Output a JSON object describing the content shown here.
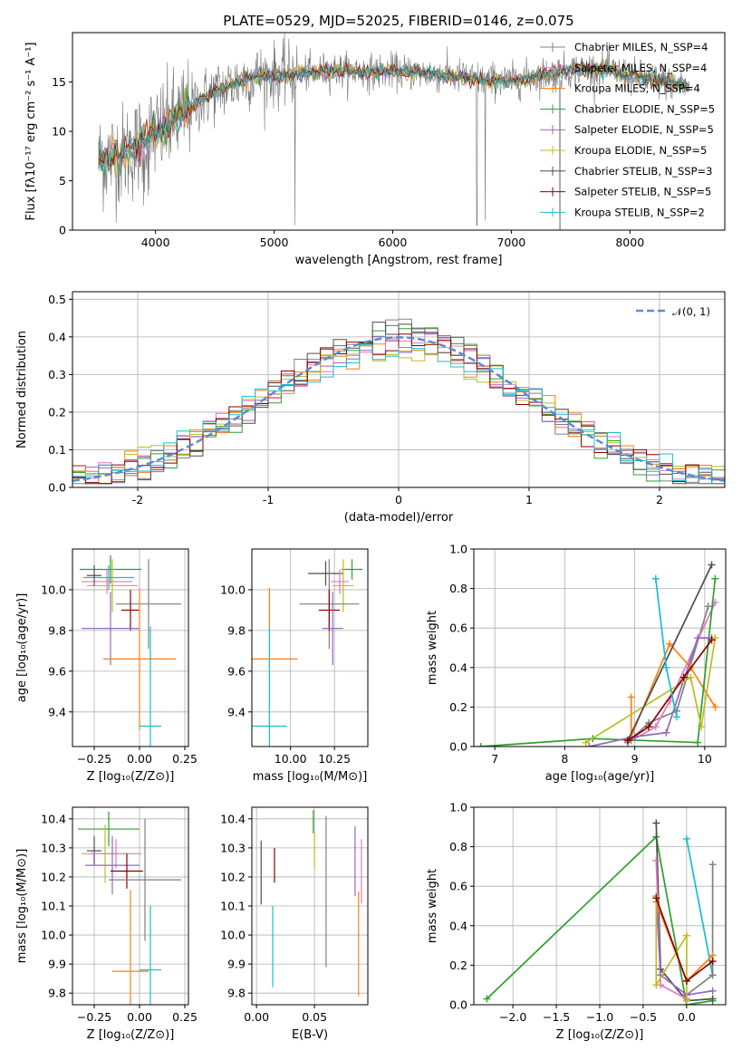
{
  "figure": {
    "title": "PLATE=0529, MJD=52025, FIBERID=0146, z=0.075"
  },
  "colors": {
    "series": [
      "#808080",
      "#e377c2",
      "#ff7f0e",
      "#2ca02c",
      "#9467bd",
      "#bcbd22",
      "#4d4d4d",
      "#8b0000",
      "#17becf"
    ],
    "obs": "#777777",
    "gauss": "#5b8bd6"
  },
  "chart_data": [
    {
      "id": "spectrum",
      "type": "line",
      "xlabel": "wavelength [Angstrom, rest frame]",
      "ylabel": "Flux [fλ10⁻¹⁷ erg cm⁻² s⁻¹ A⁻¹]",
      "xlim": [
        3300,
        8800
      ],
      "ylim": [
        0,
        20
      ],
      "xticks": [
        4000,
        5000,
        6000,
        7000,
        8000
      ],
      "yticks": [
        0,
        5,
        10,
        15
      ],
      "grid": false,
      "legend_position": "right",
      "legend": [
        "Chabrier MILES, N_SSP=4",
        "Salpeter MILES, N_SSP=4",
        "Kroupa MILES, N_SSP=4",
        "Chabrier ELODIE, N_SSP=5",
        "Salpeter ELODIE, N_SSP=5",
        "Kroupa ELODIE, N_SSP=5",
        "Chabrier STELIB, N_SSP=3",
        "Salpeter STELIB, N_SSP=5",
        "Kroupa STELIB, N_SSP=2"
      ],
      "continuum": [
        [
          3520,
          7.0
        ],
        [
          3650,
          7.5
        ],
        [
          3800,
          8.0
        ],
        [
          3950,
          9.5
        ],
        [
          4100,
          10.5
        ],
        [
          4300,
          12.5
        ],
        [
          4500,
          14.0
        ],
        [
          4800,
          15.5
        ],
        [
          5000,
          15.7
        ],
        [
          5200,
          15.8
        ],
        [
          5500,
          16.2
        ],
        [
          5800,
          16.0
        ],
        [
          6000,
          16.1
        ],
        [
          6300,
          15.9
        ],
        [
          6500,
          15.6
        ],
        [
          6800,
          15.2
        ],
        [
          7000,
          15.1
        ],
        [
          7300,
          15.8
        ],
        [
          7500,
          16.2
        ],
        [
          7800,
          16.3
        ],
        [
          8000,
          15.6
        ],
        [
          8300,
          15.0
        ],
        [
          8500,
          14.6
        ]
      ],
      "dips": [
        [
          3900,
          2.5
        ],
        [
          3935,
          3.5
        ],
        [
          5175,
          0.5
        ],
        [
          6710,
          0.5
        ],
        [
          6780,
          1.0
        ],
        [
          7410,
          0.0
        ]
      ]
    },
    {
      "id": "residuals",
      "type": "area",
      "xlabel": "(data-model)/error",
      "ylabel": "Normed distribution",
      "xlim": [
        -2.5,
        2.5
      ],
      "ylim": [
        0,
        0.52
      ],
      "xticks": [
        -2,
        -1,
        0,
        1,
        2
      ],
      "yticks": [
        0.0,
        0.1,
        0.2,
        0.3,
        0.4,
        0.5
      ],
      "grid": true,
      "legend_position": "top-right",
      "legend": [
        "𝒩(0, 1)"
      ],
      "bin_width": 0.1,
      "bin_start": -2.5
    },
    {
      "id": "age-vs-Z",
      "type": "scatter",
      "xlabel": "Z [log₁₀(Z/Z⊙)]",
      "ylabel": "age  [log₁₀(age/yr)]",
      "xlim": [
        -0.37,
        0.27
      ],
      "ylim": [
        9.23,
        10.2
      ],
      "xticks": [
        -0.25,
        0.0,
        0.25
      ],
      "xticklabels": [
        "−0.25",
        "0.00",
        "0.25"
      ],
      "yticks": [
        9.4,
        9.6,
        9.8,
        10.0
      ],
      "grid": true,
      "points": [
        {
          "s": 3,
          "x": -0.16,
          "xerr": 0.17,
          "y": 10.1,
          "yerr": 0.07
        },
        {
          "s": 8,
          "x": -0.17,
          "xerr": 0.14,
          "y": 10.06,
          "yerr": 0.06
        },
        {
          "s": 1,
          "x": -0.18,
          "xerr": 0.14,
          "y": 10.04,
          "yerr": 0.06
        },
        {
          "s": 5,
          "x": -0.15,
          "xerr": 0.14,
          "y": 10.02,
          "yerr": 0.13
        },
        {
          "s": 6,
          "x": -0.25,
          "xerr": 0.04,
          "y": 10.07,
          "yerr": 0.05
        },
        {
          "s": 0,
          "x": 0.05,
          "xerr": 0.18,
          "y": 9.93,
          "yerr": 0.22
        },
        {
          "s": 7,
          "x": -0.05,
          "xerr": 0.05,
          "y": 9.9,
          "yerr": 0.1
        },
        {
          "s": 4,
          "x": -0.16,
          "xerr": 0.16,
          "y": 9.81,
          "yerr": 0.18
        },
        {
          "s": 2,
          "x": 0.0,
          "xerr": 0.2,
          "y": 9.66,
          "yerr": 0.35
        },
        {
          "s": 8,
          "x": 0.06,
          "xerr": 0.06,
          "y": 9.33,
          "yerr": 0.49
        }
      ]
    },
    {
      "id": "age-vs-mass",
      "type": "scatter",
      "xlabel": "mass [log₁₀(M/M⊙)]",
      "ylabel": "",
      "xlim": [
        9.78,
        10.44
      ],
      "ylim": [
        9.23,
        10.2
      ],
      "xticks": [
        10.0,
        10.25
      ],
      "xticklabels": [
        "10.00",
        "10.25"
      ],
      "yticks": [
        9.4,
        9.6,
        9.8,
        10.0
      ],
      "grid": true,
      "points": [
        {
          "s": 3,
          "x": 10.35,
          "xerr": 0.06,
          "y": 10.1,
          "yerr": 0.05
        },
        {
          "s": 6,
          "x": 10.2,
          "xerr": 0.1,
          "y": 10.08,
          "yerr": 0.06
        },
        {
          "s": 1,
          "x": 10.28,
          "xerr": 0.05,
          "y": 10.04,
          "yerr": 0.06
        },
        {
          "s": 5,
          "x": 10.3,
          "xerr": 0.06,
          "y": 10.02,
          "yerr": 0.13
        },
        {
          "s": 0,
          "x": 10.22,
          "xerr": 0.17,
          "y": 9.93,
          "yerr": 0.22
        },
        {
          "s": 7,
          "x": 10.22,
          "xerr": 0.06,
          "y": 9.9,
          "yerr": 0.1
        },
        {
          "s": 4,
          "x": 10.24,
          "xerr": 0.06,
          "y": 9.81,
          "yerr": 0.18
        },
        {
          "s": 2,
          "x": 9.88,
          "xerr": 0.16,
          "y": 9.66,
          "yerr": 0.35
        },
        {
          "s": 8,
          "x": 9.88,
          "xerr": 0.1,
          "y": 9.33,
          "yerr": 0.49
        }
      ]
    },
    {
      "id": "massweight-vs-age",
      "type": "line",
      "xlabel": "age  [log₁₀(age/yr)]",
      "ylabel": "mass weight",
      "xlim": [
        6.7,
        10.3
      ],
      "ylim": [
        0,
        1
      ],
      "xticks": [
        7,
        8,
        9,
        10
      ],
      "yticks": [
        0.0,
        0.2,
        0.4,
        0.6,
        0.8,
        1.0
      ],
      "grid": true,
      "series": [
        {
          "s": 0,
          "points": [
            [
              8.9,
              0.02
            ],
            [
              9.2,
              0.12
            ],
            [
              9.6,
              0.18
            ],
            [
              10.05,
              0.71
            ]
          ]
        },
        {
          "s": 1,
          "points": [
            [
              8.95,
              0.03
            ],
            [
              9.3,
              0.1
            ],
            [
              9.5,
              0.23
            ],
            [
              10.15,
              0.73
            ]
          ]
        },
        {
          "s": 2,
          "points": [
            [
              8.95,
              0.25
            ],
            [
              8.95,
              0.05
            ],
            [
              9.5,
              0.52
            ],
            [
              9.8,
              0.4
            ],
            [
              10.15,
              0.2
            ]
          ]
        },
        {
          "s": 3,
          "points": [
            [
              6.8,
              0.0
            ],
            [
              8.4,
              0.04
            ],
            [
              9.9,
              0.02
            ],
            [
              10.15,
              0.85
            ]
          ]
        },
        {
          "s": 4,
          "points": [
            [
              8.35,
              0.0
            ],
            [
              9.0,
              0.05
            ],
            [
              9.45,
              0.07
            ],
            [
              9.9,
              0.55
            ],
            [
              10.1,
              0.55
            ]
          ]
        },
        {
          "s": 5,
          "points": [
            [
              8.3,
              0.02
            ],
            [
              9.8,
              0.35
            ],
            [
              9.95,
              0.1
            ],
            [
              10.15,
              0.55
            ]
          ]
        },
        {
          "s": 6,
          "points": [
            [
              8.9,
              0.03
            ],
            [
              10.1,
              0.92
            ]
          ]
        },
        {
          "s": 7,
          "points": [
            [
              8.9,
              0.03
            ],
            [
              9.2,
              0.1
            ],
            [
              9.7,
              0.35
            ],
            [
              10.1,
              0.54
            ]
          ]
        },
        {
          "s": 8,
          "points": [
            [
              9.3,
              0.85
            ],
            [
              9.45,
              0.4
            ],
            [
              9.6,
              0.15
            ]
          ]
        }
      ]
    },
    {
      "id": "mass-vs-Z",
      "type": "scatter",
      "xlabel": "Z [log₁₀(Z/Z⊙)]",
      "ylabel": "mass [log₁₀(M/M⊙)]",
      "xlim": [
        -0.37,
        0.27
      ],
      "ylim": [
        9.76,
        10.44
      ],
      "xticks": [
        -0.25,
        0.0,
        0.25
      ],
      "xticklabels": [
        "−0.25",
        "0.00",
        "0.25"
      ],
      "yticks": [
        9.8,
        9.9,
        10.0,
        10.1,
        10.2,
        10.3,
        10.4
      ],
      "grid": true,
      "points": [
        {
          "s": 3,
          "x": -0.17,
          "xerr": 0.17,
          "y": 10.365,
          "yerr": 0.06
        },
        {
          "s": 6,
          "x": -0.25,
          "xerr": 0.04,
          "y": 10.29,
          "yerr": 0.05
        },
        {
          "s": 5,
          "x": -0.19,
          "xerr": 0.13,
          "y": 10.28,
          "yerr": 0.1
        },
        {
          "s": 1,
          "x": -0.13,
          "xerr": 0.14,
          "y": 10.28,
          "yerr": 0.05
        },
        {
          "s": 4,
          "x": -0.15,
          "xerr": 0.15,
          "y": 10.24,
          "yerr": 0.1
        },
        {
          "s": 7,
          "x": -0.07,
          "xerr": 0.09,
          "y": 10.22,
          "yerr": 0.06
        },
        {
          "s": 0,
          "x": 0.03,
          "xerr": 0.2,
          "y": 10.19,
          "yerr": 0.21
        },
        {
          "s": 2,
          "x": -0.05,
          "xerr": 0.1,
          "y": 9.875,
          "yerr": 0.28
        },
        {
          "s": 8,
          "x": 0.06,
          "xerr": 0.06,
          "y": 9.88,
          "yerr": 0.22
        }
      ]
    },
    {
      "id": "mass-vs-ebv",
      "type": "scatter",
      "xlabel": "E(B-V)",
      "ylabel": "",
      "xlim": [
        -0.004,
        0.096
      ],
      "ylim": [
        9.76,
        10.44
      ],
      "xticks": [
        0.0,
        0.05
      ],
      "xticklabels": [
        "0.00",
        "0.05"
      ],
      "yticks": [
        9.8,
        9.9,
        10.0,
        10.1,
        10.2,
        10.3,
        10.4
      ],
      "grid": true,
      "points": [
        {
          "s": 6,
          "x": 0.004,
          "y": 10.215,
          "yerr": 0.11
        },
        {
          "s": 8,
          "x": 0.014,
          "y": 9.96,
          "yerr": 0.14
        },
        {
          "s": 7,
          "x": 0.0155,
          "y": 10.24,
          "yerr": 0.06
        },
        {
          "s": 3,
          "x": 0.049,
          "y": 10.39,
          "yerr": 0.04
        },
        {
          "s": 5,
          "x": 0.05,
          "y": 10.29,
          "yerr": 0.06
        },
        {
          "s": 0,
          "x": 0.06,
          "y": 10.15,
          "yerr": 0.26
        },
        {
          "s": 4,
          "x": 0.085,
          "y": 10.255,
          "yerr": 0.12
        },
        {
          "s": 1,
          "x": 0.0905,
          "y": 10.22,
          "yerr": 0.11
        },
        {
          "s": 2,
          "x": 0.088,
          "y": 9.97,
          "yerr": 0.18
        }
      ]
    },
    {
      "id": "massweight-vs-Z",
      "type": "line",
      "xlabel": "Z [log₁₀(Z/Z⊙)]",
      "ylabel": "mass weight",
      "xlim": [
        -2.45,
        0.45
      ],
      "ylim": [
        0,
        1
      ],
      "xticks": [
        -2.0,
        -1.5,
        -1.0,
        -0.5,
        0.0
      ],
      "xticklabels": [
        "−2.0",
        "−1.5",
        "−1.0",
        "−0.5",
        "0.0"
      ],
      "yticks": [
        0.0,
        0.2,
        0.4,
        0.6,
        0.8,
        1.0
      ],
      "grid": true,
      "series": [
        {
          "s": 3,
          "points": [
            [
              -2.3,
              0.03
            ],
            [
              -0.35,
              0.85
            ],
            [
              0.0,
              0.0
            ],
            [
              0.3,
              0.02
            ]
          ]
        },
        {
          "s": 6,
          "points": [
            [
              -0.35,
              0.92
            ],
            [
              -0.3,
              0.18
            ],
            [
              0.0,
              0.02
            ],
            [
              0.3,
              0.03
            ]
          ]
        },
        {
          "s": 8,
          "points": [
            [
              0.0,
              0.84
            ],
            [
              0.3,
              0.15
            ]
          ]
        },
        {
          "s": 0,
          "points": [
            [
              0.3,
              0.71
            ],
            [
              0.3,
              0.15
            ],
            [
              0.0,
              0.05
            ]
          ]
        },
        {
          "s": 1,
          "points": [
            [
              -0.35,
              0.73
            ],
            [
              -0.3,
              0.1
            ],
            [
              0.0,
              0.03
            ]
          ]
        },
        {
          "s": 2,
          "points": [
            [
              -0.35,
              0.52
            ],
            [
              0.0,
              0.12
            ],
            [
              0.3,
              0.25
            ]
          ]
        },
        {
          "s": 4,
          "points": [
            [
              -0.35,
              0.55
            ],
            [
              -0.3,
              0.15
            ],
            [
              0.0,
              0.05
            ],
            [
              0.3,
              0.07
            ]
          ]
        },
        {
          "s": 5,
          "points": [
            [
              -0.35,
              0.55
            ],
            [
              -0.35,
              0.1
            ],
            [
              0.0,
              0.35
            ],
            [
              0.0,
              0.02
            ]
          ]
        },
        {
          "s": 7,
          "points": [
            [
              -0.35,
              0.54
            ],
            [
              0.0,
              0.12
            ],
            [
              0.3,
              0.22
            ]
          ]
        }
      ]
    }
  ]
}
